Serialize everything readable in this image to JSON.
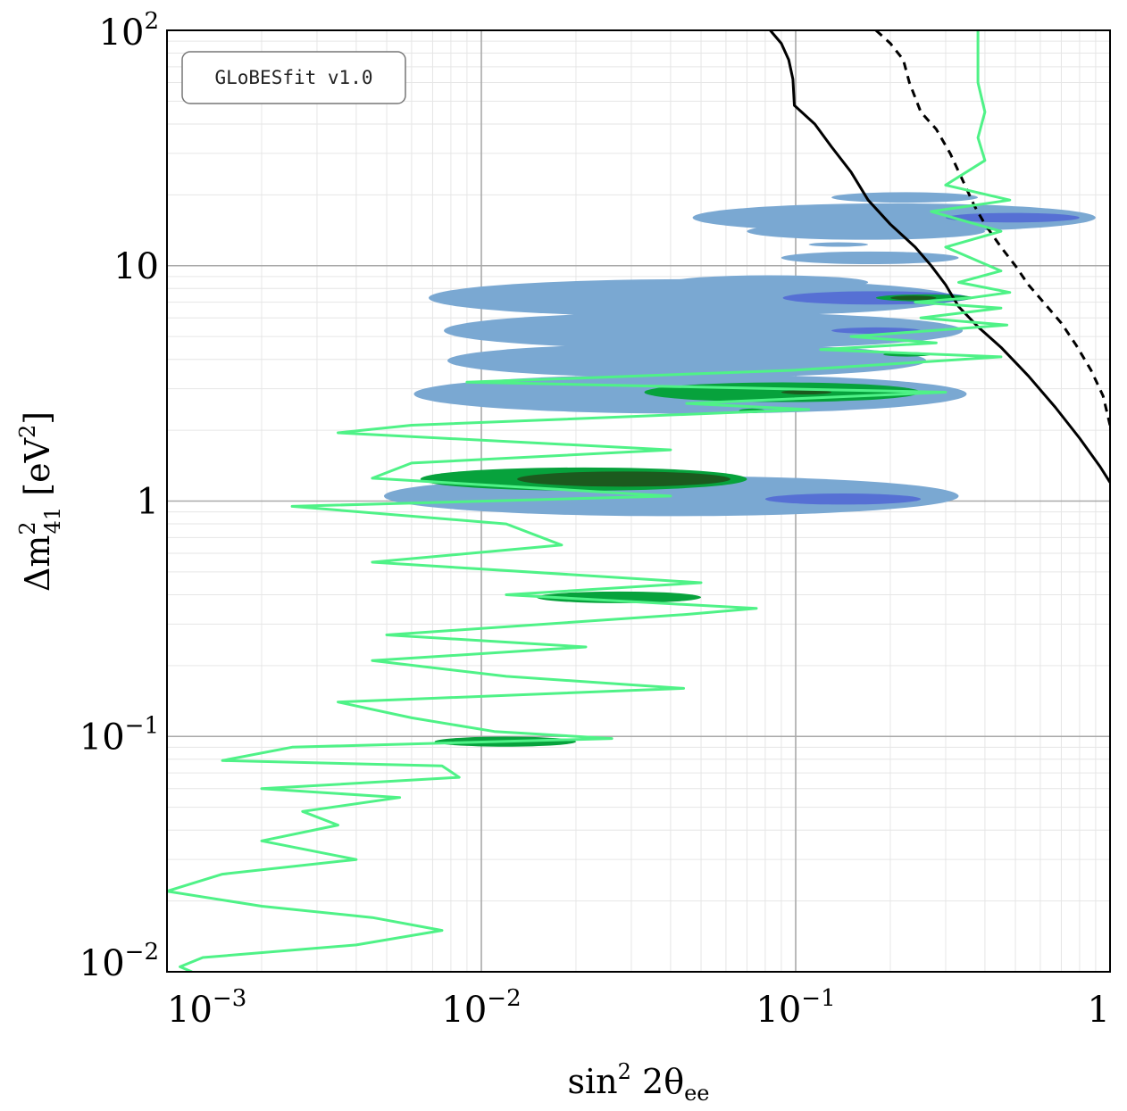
{
  "chart_data": {
    "type": "contour",
    "badge": "GLoBESfit v1.0",
    "xlabel": {
      "main": "sin",
      "sup": "2",
      "rest": " 2θ",
      "sub": "ee"
    },
    "ylabel": {
      "main": "Δm",
      "sup": "2",
      "sub": "41",
      "unit_open": " [eV",
      "unit_sup": "2",
      "unit_close": "]"
    },
    "xscale": "log",
    "yscale": "log",
    "xlim": [
      0.001,
      1
    ],
    "ylim": [
      0.01,
      100
    ],
    "grid": true,
    "legend": "none",
    "x_ticks": [
      {
        "value": 0.001,
        "base": "10",
        "exp": "−3"
      },
      {
        "value": 0.01,
        "base": "10",
        "exp": "−2"
      },
      {
        "value": 0.1,
        "base": "10",
        "exp": "−1"
      },
      {
        "value": 1,
        "base": "1",
        "exp": ""
      }
    ],
    "y_ticks": [
      {
        "value": 0.01,
        "base": "10",
        "exp": "−2"
      },
      {
        "value": 0.1,
        "base": "10",
        "exp": "−1"
      },
      {
        "value": 1,
        "base": "1",
        "exp": ""
      },
      {
        "value": 10,
        "base": "10",
        "exp": ""
      },
      {
        "value": 100,
        "base": "10",
        "exp": "2"
      }
    ],
    "colors": {
      "light_blue": "#7aa8d2",
      "dark_blue": "#5670d4",
      "green": "#07a23c",
      "dark_green": "#1c5a1e",
      "bright_green_line": "#4ff287",
      "black_line": "#000000"
    },
    "regions": [
      {
        "name": "blue-region-1",
        "color": "light_blue",
        "x": [
          0.13,
          0.38
        ],
        "y": 19.5
      },
      {
        "name": "blue-region-2",
        "color": "light_blue",
        "x": [
          0.047,
          0.9
        ],
        "y": 16.0
      },
      {
        "name": "blue-region-3",
        "color": "dark_blue",
        "x": [
          0.3,
          0.8
        ],
        "y": 16.0
      },
      {
        "name": "blue-region-4",
        "color": "light_blue",
        "x": [
          0.07,
          0.4
        ],
        "y": 14.0
      },
      {
        "name": "blue-region-5",
        "color": "light_blue",
        "x": [
          0.11,
          0.17
        ],
        "y": 12.3
      },
      {
        "name": "blue-region-6",
        "color": "light_blue",
        "x": [
          0.09,
          0.33
        ],
        "y": 10.8
      },
      {
        "name": "blue-region-7",
        "color": "light_blue",
        "x": [
          0.04,
          0.17
        ],
        "y": 8.5
      },
      {
        "name": "blue-region-8",
        "color": "light_blue",
        "x": [
          0.0068,
          0.32
        ],
        "y": 7.3
      },
      {
        "name": "blue-region-9",
        "color": "dark_blue",
        "x": [
          0.091,
          0.36
        ],
        "y": 7.3
      },
      {
        "name": "green-region-1",
        "color": "green",
        "x": [
          0.18,
          0.37
        ],
        "y": 7.3
      },
      {
        "name": "darkgreen-region-1",
        "color": "dark_green",
        "x": [
          0.2,
          0.28
        ],
        "y": 7.3
      },
      {
        "name": "blue-region-10",
        "color": "light_blue",
        "x": [
          0.0076,
          0.34
        ],
        "y": 5.3
      },
      {
        "name": "blue-region-11",
        "color": "dark_blue",
        "x": [
          0.13,
          0.25
        ],
        "y": 5.3
      },
      {
        "name": "blue-region-12",
        "color": "light_blue",
        "x": [
          0.0078,
          0.26
        ],
        "y": 3.95
      },
      {
        "name": "green-region-2",
        "color": "green",
        "x": [
          0.19,
          0.27
        ],
        "y": 4.2
      },
      {
        "name": "blue-region-13",
        "color": "light_blue",
        "x": [
          0.0061,
          0.35
        ],
        "y": 2.85
      },
      {
        "name": "green-region-3",
        "color": "green",
        "x": [
          0.033,
          0.25
        ],
        "y": 2.9
      },
      {
        "name": "darkgreen-region-2",
        "color": "dark_green",
        "x": [
          0.09,
          0.13
        ],
        "y": 2.9
      },
      {
        "name": "green-region-4",
        "color": "green",
        "x": [
          0.066,
          0.08
        ],
        "y": 2.42
      },
      {
        "name": "blue-region-14",
        "color": "light_blue",
        "x": [
          0.0049,
          0.33
        ],
        "y": 1.05
      },
      {
        "name": "green-region-5",
        "color": "green",
        "x": [
          0.0064,
          0.07
        ],
        "y": 1.24
      },
      {
        "name": "darkgreen-region-3",
        "color": "dark_green",
        "x": [
          0.013,
          0.062
        ],
        "y": 1.24
      },
      {
        "name": "blue-region-15",
        "color": "dark_blue",
        "x": [
          0.08,
          0.25
        ],
        "y": 1.02
      },
      {
        "name": "green-region-6",
        "color": "green",
        "x": [
          0.015,
          0.05
        ],
        "y": 0.39
      },
      {
        "name": "green-region-7",
        "color": "green",
        "x": [
          0.0071,
          0.02
        ],
        "y": 0.095
      }
    ],
    "series": [
      {
        "color": "black_line",
        "dash": false,
        "points": [
          [
            0.083,
            100
          ],
          [
            0.09,
            88
          ],
          [
            0.095,
            75
          ],
          [
            0.098,
            62
          ],
          [
            0.099,
            48
          ],
          [
            0.115,
            40
          ],
          [
            0.13,
            32
          ],
          [
            0.15,
            25
          ],
          [
            0.17,
            19
          ],
          [
            0.2,
            15
          ],
          [
            0.24,
            12
          ],
          [
            0.27,
            10
          ],
          [
            0.3,
            8.3
          ],
          [
            0.33,
            6.7
          ],
          [
            0.38,
            5.5
          ],
          [
            0.45,
            4.5
          ],
          [
            0.55,
            3.4
          ],
          [
            0.67,
            2.5
          ],
          [
            0.8,
            1.85
          ],
          [
            0.93,
            1.4
          ],
          [
            1.0,
            1.2
          ]
        ]
      },
      {
        "color": "black_line",
        "dash": true,
        "points": [
          [
            0.18,
            100
          ],
          [
            0.2,
            88
          ],
          [
            0.22,
            75
          ],
          [
            0.23,
            60
          ],
          [
            0.25,
            45
          ],
          [
            0.28,
            38
          ],
          [
            0.31,
            30
          ],
          [
            0.34,
            23
          ],
          [
            0.37,
            18
          ],
          [
            0.4,
            15
          ],
          [
            0.45,
            12
          ],
          [
            0.5,
            10
          ],
          [
            0.55,
            8.3
          ],
          [
            0.62,
            6.9
          ],
          [
            0.7,
            5.7
          ],
          [
            0.78,
            4.6
          ],
          [
            0.87,
            3.6
          ],
          [
            0.95,
            2.8
          ],
          [
            1.0,
            2.1
          ]
        ]
      },
      {
        "color": "bright_green_line",
        "dash": false,
        "points": [
          [
            0.38,
            100
          ],
          [
            0.38,
            60
          ],
          [
            0.4,
            45
          ],
          [
            0.38,
            35
          ],
          [
            0.4,
            28
          ],
          [
            0.3,
            22
          ],
          [
            0.48,
            19
          ],
          [
            0.27,
            17
          ],
          [
            0.45,
            14
          ],
          [
            0.3,
            12
          ],
          [
            0.45,
            9.5
          ],
          [
            0.33,
            8.5
          ],
          [
            0.48,
            7.7
          ],
          [
            0.36,
            7.3
          ],
          [
            0.24,
            7.0
          ],
          [
            0.45,
            6.6
          ],
          [
            0.25,
            6.0
          ],
          [
            0.47,
            5.6
          ],
          [
            0.15,
            5.0
          ],
          [
            0.28,
            4.7
          ],
          [
            0.12,
            4.4
          ],
          [
            0.45,
            4.1
          ],
          [
            0.1,
            3.6
          ],
          [
            0.009,
            3.2
          ],
          [
            0.3,
            2.9
          ],
          [
            0.045,
            2.6
          ],
          [
            0.11,
            2.45
          ],
          [
            0.006,
            2.1
          ],
          [
            0.0035,
            1.95
          ],
          [
            0.04,
            1.65
          ],
          [
            0.006,
            1.45
          ],
          [
            0.0045,
            1.25
          ],
          [
            0.04,
            1.05
          ],
          [
            0.0025,
            0.95
          ],
          [
            0.012,
            0.8
          ],
          [
            0.018,
            0.65
          ],
          [
            0.0045,
            0.55
          ],
          [
            0.05,
            0.45
          ],
          [
            0.012,
            0.4
          ],
          [
            0.075,
            0.35
          ],
          [
            0.045,
            0.33
          ],
          [
            0.005,
            0.27
          ],
          [
            0.0215,
            0.24
          ],
          [
            0.0045,
            0.21
          ],
          [
            0.012,
            0.18
          ],
          [
            0.044,
            0.16
          ],
          [
            0.0035,
            0.14
          ],
          [
            0.006,
            0.12
          ],
          [
            0.011,
            0.105
          ],
          [
            0.026,
            0.098
          ],
          [
            0.0025,
            0.09
          ],
          [
            0.0015,
            0.079
          ],
          [
            0.0075,
            0.075
          ],
          [
            0.0085,
            0.067
          ],
          [
            0.002,
            0.06
          ],
          [
            0.0055,
            0.055
          ],
          [
            0.0027,
            0.048
          ],
          [
            0.0035,
            0.042
          ],
          [
            0.002,
            0.036
          ],
          [
            0.004,
            0.03
          ],
          [
            0.0015,
            0.026
          ],
          [
            0.001,
            0.022
          ],
          [
            0.002,
            0.019
          ],
          [
            0.0045,
            0.017
          ],
          [
            0.0075,
            0.015
          ],
          [
            0.004,
            0.013
          ],
          [
            0.0013,
            0.0115
          ],
          [
            0.0011,
            0.0105
          ],
          [
            0.0012,
            0.01
          ]
        ]
      }
    ]
  }
}
